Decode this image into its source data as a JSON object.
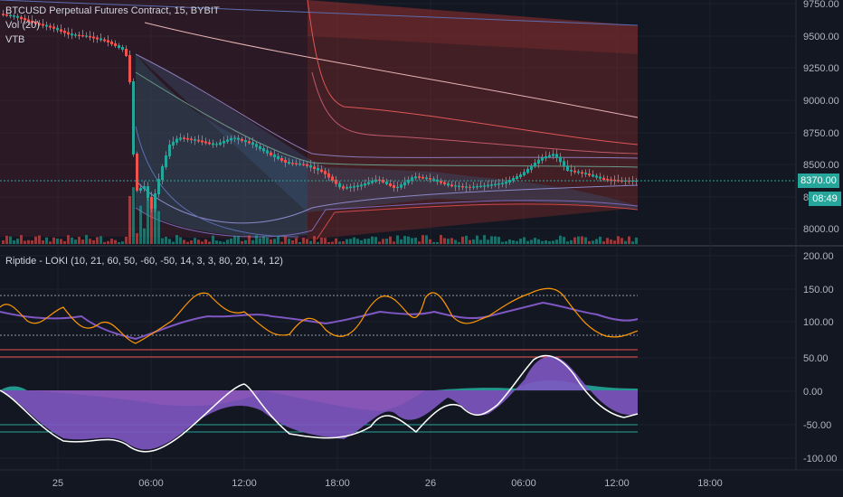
{
  "legend": {
    "main": "BTCUSD Perpetual Futures Contract, 15, BYBIT",
    "vol": "Vol (20)",
    "vtb": "VTB",
    "osc": "Riptide - LOKI (10, 21, 60, 50, -60, -50, 14, 3, 3, 80, 20, 14, 12)"
  },
  "price_axis": {
    "ticks": [
      "9750.00",
      "9500.00",
      "9250.00",
      "9000.00",
      "8750.00",
      "8500.00",
      "8250.00",
      "8000.00"
    ],
    "last_price": "8370.00",
    "countdown": "08:49"
  },
  "osc_axis": {
    "ticks": [
      "200.00",
      "150.00",
      "100.00",
      "50.00",
      "0.00",
      "-50.00",
      "-100.00"
    ]
  },
  "time_axis": {
    "ticks": [
      "25",
      "06:00",
      "12:00",
      "18:00",
      "26",
      "06:00",
      "12:00",
      "18:00"
    ]
  },
  "colors": {
    "bg": "#131722",
    "up": "#26a69a",
    "down": "#ef5350",
    "last_price_tag": "#26a69a",
    "rsi_line": "#7e57c2",
    "fast_line": "#ff9800"
  }
}
